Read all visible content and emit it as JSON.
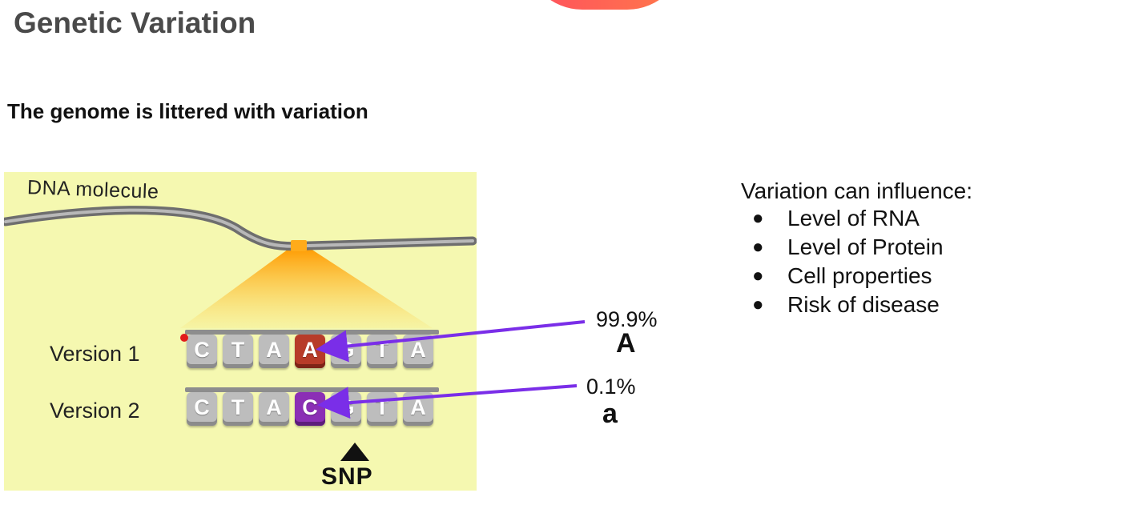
{
  "slide": {
    "title": "Genetic Variation",
    "subtitle": "The genome is littered with variation"
  },
  "diagram": {
    "dna_label": "DNA molecule",
    "versions": [
      {
        "label": "Version 1",
        "bases": [
          "C",
          "T",
          "A",
          "A",
          "G",
          "T",
          "A"
        ],
        "highlight_index": 3,
        "highlight_color": "#b73b29"
      },
      {
        "label": "Version 2",
        "bases": [
          "C",
          "T",
          "A",
          "C",
          "G",
          "T",
          "A"
        ],
        "highlight_index": 3,
        "highlight_color": "#8b2fb5"
      }
    ],
    "snp_label": "SNP",
    "background_color": "#f5f8b0",
    "arrow_color": "#7a2ee8"
  },
  "alleles": [
    {
      "frequency": "99.9%",
      "symbol": "A"
    },
    {
      "frequency": "0.1%",
      "symbol": "a"
    }
  ],
  "info": {
    "heading": "Variation can influence:",
    "items": [
      "Level of RNA",
      "Level of Protein",
      "Cell properties",
      "Risk of disease"
    ]
  }
}
